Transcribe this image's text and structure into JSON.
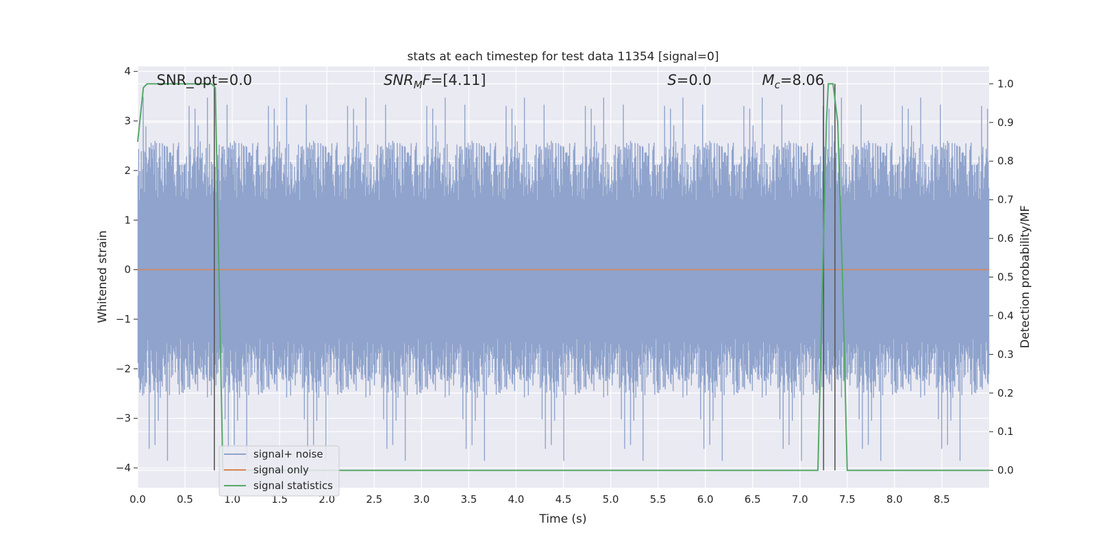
{
  "chart_data": {
    "type": "line",
    "title": "stats at each timestep for test data 11354 [signal=0]",
    "xlabel": "Time (s)",
    "ylabel": "Whitened strain",
    "y2label": "Detection probability/MF",
    "xlim": [
      0.0,
      9.0
    ],
    "ylim": [
      -4.4,
      4.1
    ],
    "y2lim": [
      -0.045,
      1.045
    ],
    "x_ticks": [
      0.0,
      0.5,
      1.0,
      1.5,
      2.0,
      2.5,
      3.0,
      3.5,
      4.0,
      4.5,
      5.0,
      5.5,
      6.0,
      6.5,
      7.0,
      7.5,
      8.0,
      8.5
    ],
    "x_tick_labels": [
      "0.0",
      "0.5",
      "1.0",
      "1.5",
      "2.0",
      "2.5",
      "3.0",
      "3.5",
      "4.0",
      "4.5",
      "5.0",
      "5.5",
      "6.0",
      "6.5",
      "7.0",
      "7.5",
      "8.0",
      "8.5"
    ],
    "y_ticks": [
      -4,
      -3,
      -2,
      -1,
      0,
      1,
      2,
      3,
      4
    ],
    "y_tick_labels": [
      "−4",
      "−3",
      "−2",
      "−1",
      "0",
      "1",
      "2",
      "3",
      "4"
    ],
    "y2_ticks": [
      0.0,
      0.1,
      0.2,
      0.3,
      0.4,
      0.5,
      0.6,
      0.7,
      0.8,
      0.9,
      1.0
    ],
    "y2_tick_labels": [
      "0.0",
      "0.1",
      "0.2",
      "0.3",
      "0.4",
      "0.5",
      "0.6",
      "0.7",
      "0.8",
      "0.9",
      "1.0"
    ],
    "grid": true,
    "legend_position": "lower-left",
    "annotations": [
      {
        "label": "SNR_opt=0.0",
        "x": 0.2
      },
      {
        "label": "SNR_MF=[4.11]",
        "x": 2.6
      },
      {
        "label": "S=0.0",
        "x": 5.6
      },
      {
        "label": "M_c=8.06",
        "x": 6.6
      }
    ],
    "vertical_markers": [
      {
        "x": 0.81,
        "y2_top": 1.0
      },
      {
        "x": 7.25,
        "y2_top": 1.0
      },
      {
        "x": 7.37,
        "y2_top": 1.0
      }
    ],
    "series": [
      {
        "name": "signal+ noise",
        "color": "#8fa3cc",
        "axis": "left",
        "style": "noise",
        "core_envelope": [
          -1.4,
          1.4
        ],
        "typical_extremes": [
          -2.6,
          2.6
        ],
        "peak_extremes": [
          -3.9,
          3.5
        ]
      },
      {
        "name": "signal only",
        "color": "#dd8452",
        "axis": "left",
        "x": [
          0.0,
          9.0
        ],
        "y": [
          0.0,
          0.0
        ]
      },
      {
        "name": "signal statistics",
        "color": "#55a868",
        "axis": "right",
        "x": [
          0.0,
          0.06,
          0.1,
          0.2,
          0.7,
          0.78,
          0.82,
          0.86,
          0.9,
          1.0,
          1.5,
          2.0,
          3.0,
          4.0,
          5.0,
          6.0,
          7.0,
          7.19,
          7.24,
          7.28,
          7.3,
          7.35,
          7.4,
          7.45,
          7.5,
          7.55,
          8.0,
          9.0
        ],
        "y": [
          0.85,
          0.99,
          1.0,
          1.0,
          1.0,
          1.0,
          0.99,
          0.5,
          0.0,
          0.0,
          0.0,
          0.0,
          0.0,
          0.0,
          0.0,
          0.0,
          0.0,
          0.0,
          0.5,
          0.9,
          1.0,
          1.0,
          0.9,
          0.5,
          0.0,
          0.0,
          0.0,
          0.0
        ]
      }
    ]
  }
}
